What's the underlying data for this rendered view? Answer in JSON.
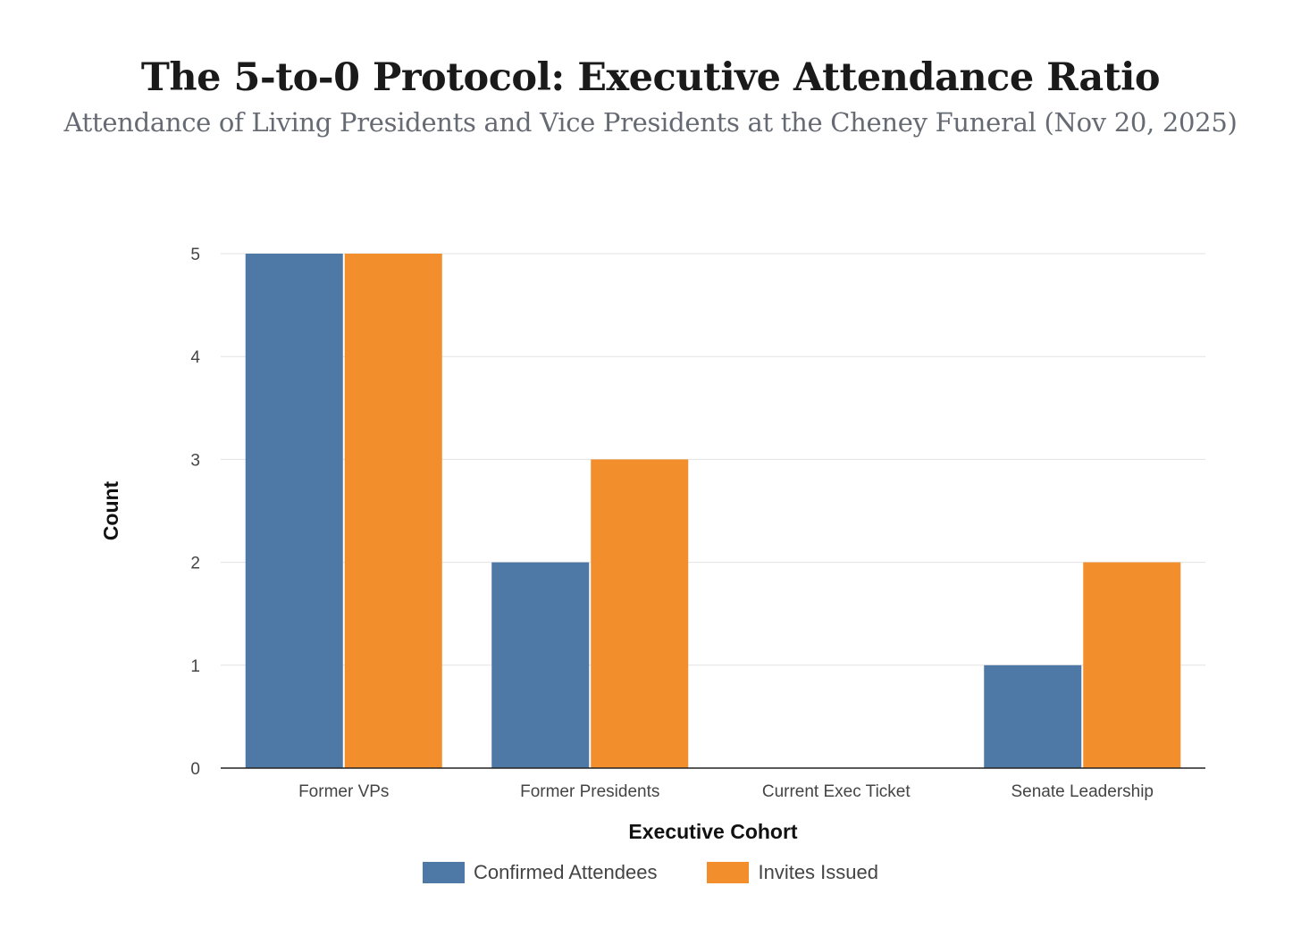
{
  "chart_data": {
    "type": "bar",
    "title": "The 5-to-0 Protocol: Executive Attendance Ratio",
    "subtitle": "Attendance of Living Presidents and Vice Presidents at the Cheney Funeral (Nov 20, 2025)",
    "xlabel": "Executive Cohort",
    "ylabel": "Count",
    "categories": [
      "Former VPs",
      "Former Presidents",
      "Current Exec Ticket",
      "Senate Leadership"
    ],
    "series": [
      {
        "name": "Confirmed Attendees",
        "values": [
          5,
          2,
          0,
          1
        ],
        "color": "#4e79a7"
      },
      {
        "name": "Invites Issued",
        "values": [
          5,
          3,
          0,
          2
        ],
        "color": "#f28e2b"
      }
    ],
    "ylim": [
      0,
      5
    ],
    "yticks": [
      "0",
      "1",
      "2",
      "3",
      "4",
      "5"
    ],
    "grid": true,
    "legend_position": "bottom"
  }
}
